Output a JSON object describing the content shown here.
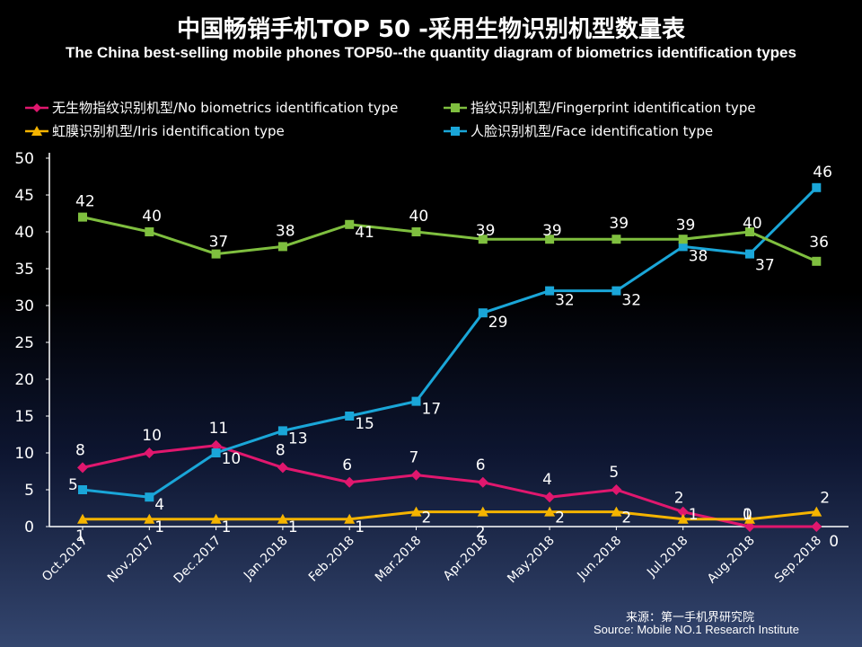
{
  "title_zh": "中国畅销手机TOP 50 -采用生物识别机型数量表",
  "title_en": "The China best-selling mobile phones TOP50--the quantity diagram of biometrics identification types",
  "legend": [
    {
      "label": "无生物指纹识别机型/No biometrics identification type",
      "color": "#e0176e",
      "marker": "diamond"
    },
    {
      "label": "指纹识别机型/Fingerprint identification type",
      "color": "#7fbf3f",
      "marker": "square"
    },
    {
      "label": "虹膜识别机型/Iris identification type",
      "color": "#f5b400",
      "marker": "triangle"
    },
    {
      "label": "人脸识别机型/Face identification type",
      "color": "#1aa6d8",
      "marker": "square"
    }
  ],
  "source_zh": "来源：第一手机界研究院",
  "source_en": "Source: Mobile NO.1 Research Institute",
  "chart_data": {
    "type": "line",
    "categories": [
      "Oct.2017",
      "Nov.2017",
      "Dec.2017",
      "Jan.2018",
      "Feb.2018",
      "Mar.2018",
      "Apr.2018",
      "May.2018",
      "Jun.2018",
      "Jul.2018",
      "Aug.2018",
      "Sep.2018"
    ],
    "ylim": [
      0,
      50
    ],
    "yticks": [
      0,
      5,
      10,
      15,
      20,
      25,
      30,
      35,
      40,
      45,
      50
    ],
    "series": [
      {
        "name": "无生物指纹识别机型/No biometrics identification type",
        "color": "#e0176e",
        "marker": "diamond",
        "values": [
          8,
          10,
          11,
          8,
          6,
          7,
          6,
          4,
          5,
          2,
          0,
          0
        ]
      },
      {
        "name": "指纹识别机型/Fingerprint identification type",
        "color": "#7fbf3f",
        "marker": "square",
        "values": [
          42,
          40,
          37,
          38,
          41,
          40,
          39,
          39,
          39,
          39,
          40,
          36
        ]
      },
      {
        "name": "虹膜识别机型/Iris identification type",
        "color": "#f5b400",
        "marker": "triangle",
        "values": [
          1,
          1,
          1,
          1,
          1,
          2,
          2,
          2,
          2,
          1,
          1,
          2
        ]
      },
      {
        "name": "人脸识别机型/Face identification type",
        "color": "#1aa6d8",
        "marker": "square",
        "values": [
          5,
          4,
          10,
          13,
          15,
          17,
          29,
          32,
          32,
          38,
          37,
          46
        ]
      }
    ]
  }
}
